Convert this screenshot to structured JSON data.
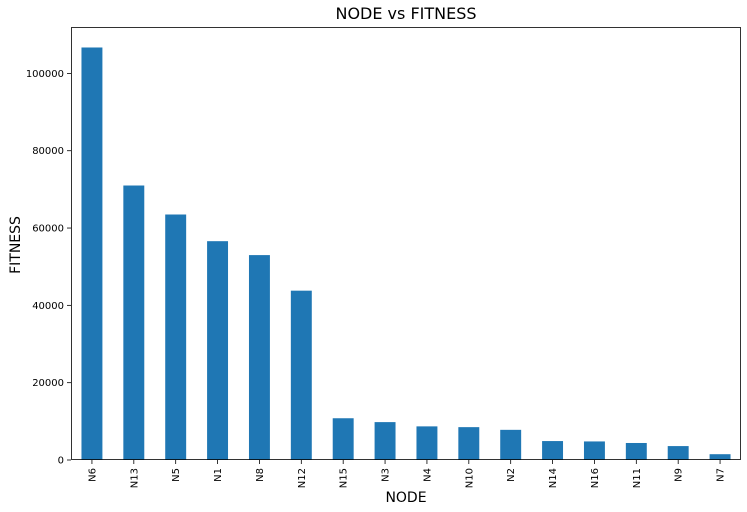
{
  "chart_data": {
    "type": "bar",
    "title": "NODE vs FITNESS",
    "xlabel": "NODE",
    "ylabel": "FITNESS",
    "categories": [
      "N6",
      "N13",
      "N5",
      "N1",
      "N8",
      "N12",
      "N15",
      "N3",
      "N4",
      "N10",
      "N2",
      "N14",
      "N16",
      "N11",
      "N9",
      "N7"
    ],
    "values": [
      106700,
      71000,
      63500,
      56600,
      53000,
      43800,
      10800,
      9800,
      8700,
      8500,
      7800,
      4900,
      4800,
      4400,
      3600,
      1500
    ],
    "ylim": [
      0,
      112000
    ],
    "yticks": [
      0,
      20000,
      40000,
      60000,
      80000,
      100000
    ],
    "grid": false,
    "bar_color": "#1f77b4"
  }
}
